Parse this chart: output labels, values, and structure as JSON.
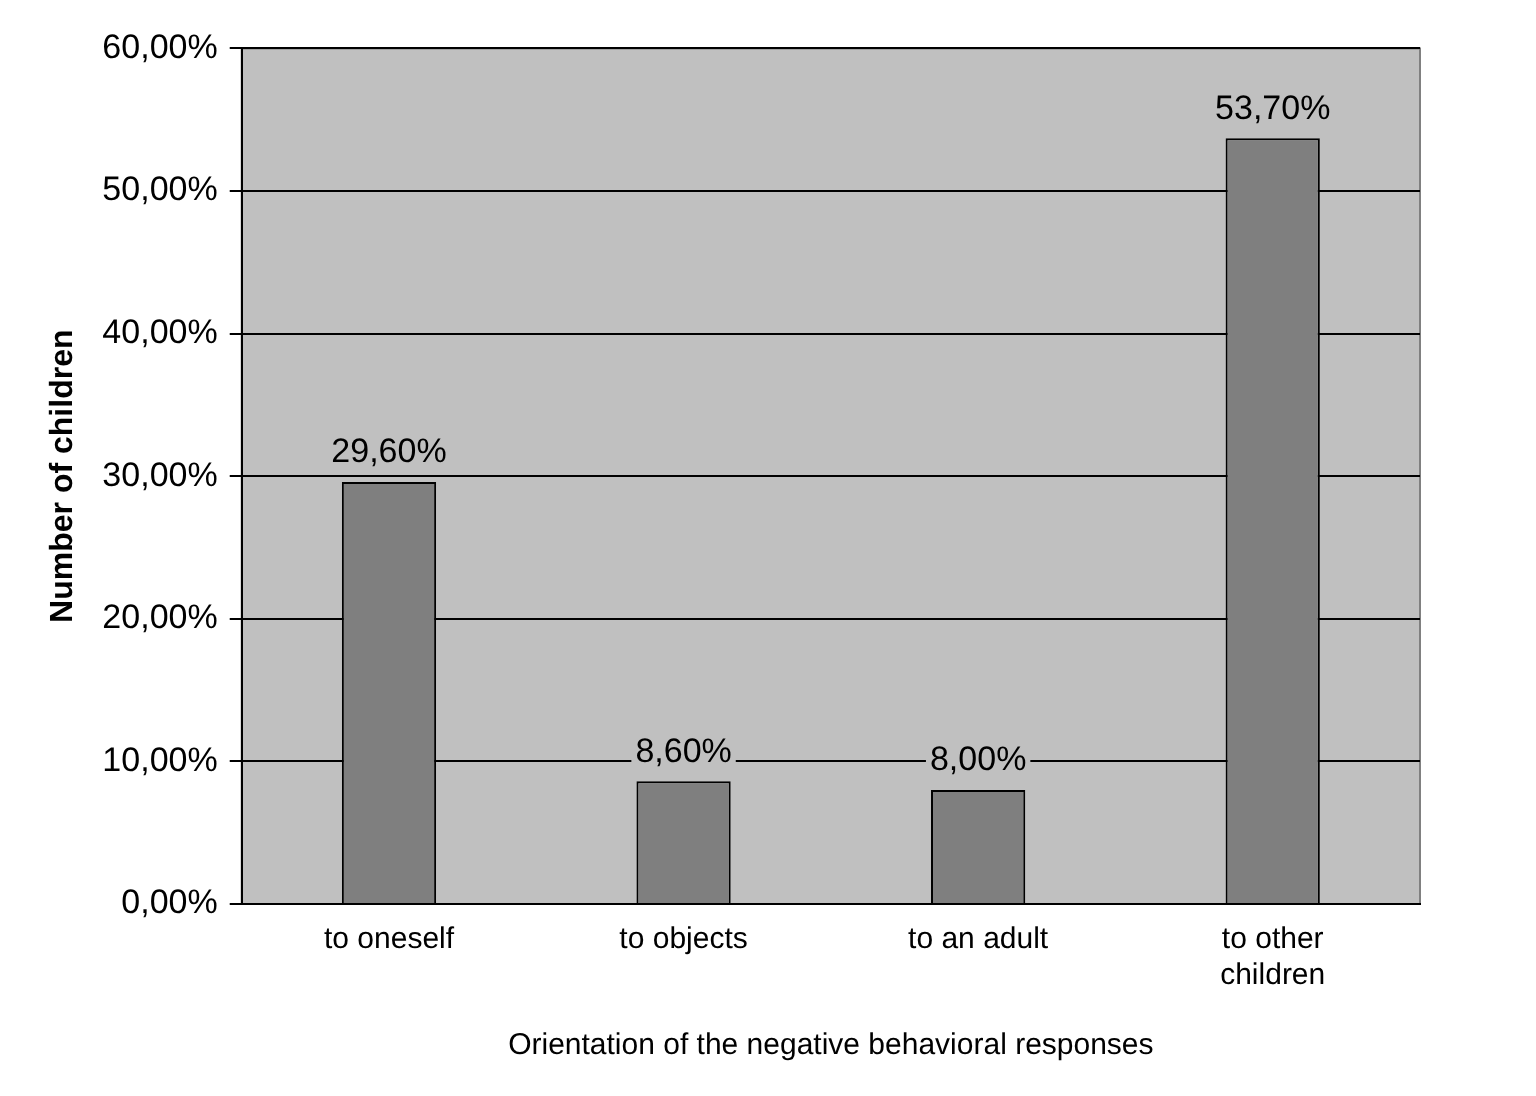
{
  "chart_data": {
    "type": "bar",
    "xlabel": "Orientation of the negative behavioral responses",
    "ylabel": "Number of children",
    "categories": [
      "to oneself",
      "to objects",
      "to an adult",
      "to other children"
    ],
    "values": [
      29.6,
      8.6,
      8.0,
      53.7
    ],
    "color": "#7f7f7f",
    "value_labels": [
      "29,60%",
      "8,60%",
      "8,00%",
      "53,70%"
    ],
    "ylim": [
      0,
      60
    ],
    "yticks": [
      {
        "value": 0,
        "label": "0,00%"
      },
      {
        "value": 10,
        "label": "10,00%"
      },
      {
        "value": 20,
        "label": "20,00%"
      },
      {
        "value": 30,
        "label": "30,00%"
      },
      {
        "value": 40,
        "label": "40,00%"
      },
      {
        "value": 50,
        "label": "50,00%"
      },
      {
        "value": 60,
        "label": "60,00%"
      }
    ],
    "grid": "y",
    "legend": false
  }
}
